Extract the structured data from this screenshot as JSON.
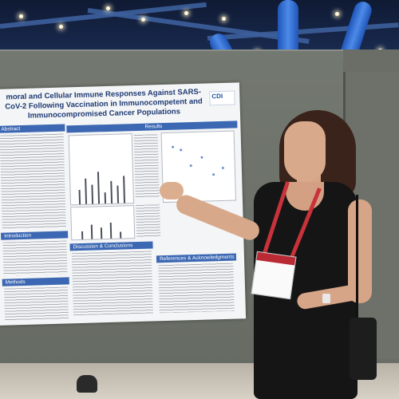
{
  "poster": {
    "title": "moral and Cellular Immune Responses Against SARS-CoV-2 Following Vaccination in Immunocompetent and Immunocompromised Cancer Populations",
    "logo": "CDI",
    "sections": {
      "abstract": "Abstract",
      "results": "Results",
      "introduction": "Introduction",
      "discussion": "Discussion & Conclusions",
      "methods": "Methods",
      "references": "References & Acknowledgments"
    }
  },
  "colors": {
    "poster_header": "#3b67b3",
    "title_text": "#1f3b74",
    "dress": "#151515",
    "lanyard": "#c8323a",
    "pillar": "#4d8ae8"
  }
}
